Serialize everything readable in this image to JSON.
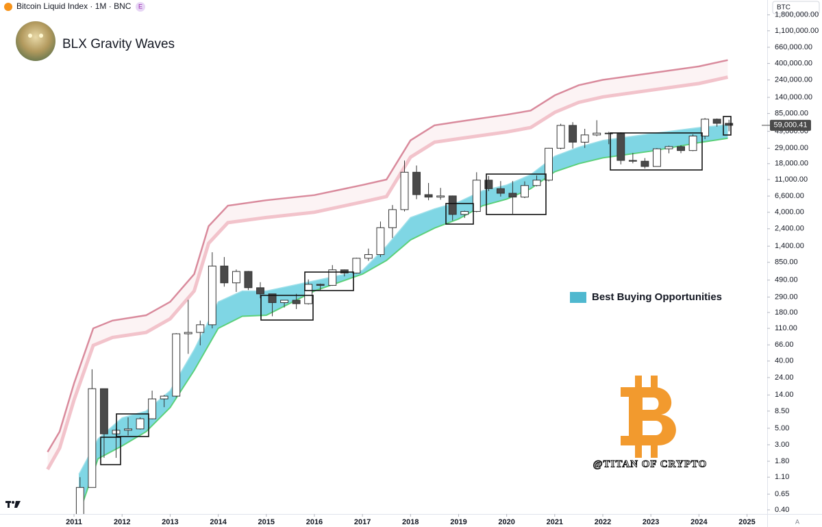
{
  "chart_data": {
    "type": "candlestick",
    "title": "Bitcoin Liquid Index · 1M · BNC",
    "badge": "E",
    "subtitle": "BLX Gravity Waves",
    "currency": "BTC",
    "scale_button": "A",
    "annotation": "@TITAN OF CRYPTO",
    "last_price": 59000.41,
    "last_price_label": "59,000.41",
    "log_y": true,
    "grid": false,
    "legend_position": "right",
    "up_color": "#ffffff",
    "down_color": "#4a4a4a",
    "xlim": [
      2009.46,
      2025.42
    ],
    "xticks": [
      2011,
      2012,
      2013,
      2014,
      2015,
      2016,
      2017,
      2018,
      2019,
      2020,
      2021,
      2022,
      2023,
      2024,
      2025
    ],
    "ylim": [
      0.352,
      2850000
    ],
    "yticks": [
      {
        "value": 1800000,
        "label": "1,800,000.00"
      },
      {
        "value": 1100000,
        "label": "1,100,000.00"
      },
      {
        "value": 660000,
        "label": "660,000.00"
      },
      {
        "value": 400000,
        "label": "400,000.00"
      },
      {
        "value": 240000,
        "label": "240,000.00"
      },
      {
        "value": 140000,
        "label": "140,000.00"
      },
      {
        "value": 85000,
        "label": "85,000.00"
      },
      {
        "value": 49000,
        "label": "49,000.00"
      },
      {
        "value": 29000,
        "label": "29,000.00"
      },
      {
        "value": 18000,
        "label": "18,000.00"
      },
      {
        "value": 11000,
        "label": "11,000.00"
      },
      {
        "value": 6600,
        "label": "6,600.00"
      },
      {
        "value": 4000,
        "label": "4,000.00"
      },
      {
        "value": 2400,
        "label": "2,400.00"
      },
      {
        "value": 1400,
        "label": "1,400.00"
      },
      {
        "value": 850,
        "label": "850.00"
      },
      {
        "value": 490,
        "label": "490.00"
      },
      {
        "value": 290,
        "label": "290.00"
      },
      {
        "value": 180,
        "label": "180.00"
      },
      {
        "value": 110,
        "label": "110.00"
      },
      {
        "value": 66,
        "label": "66.00"
      },
      {
        "value": 40,
        "label": "40.00"
      },
      {
        "value": 24,
        "label": "24.00"
      },
      {
        "value": 14,
        "label": "14.00"
      },
      {
        "value": 8.5,
        "label": "8.50"
      },
      {
        "value": 5,
        "label": "5.00"
      },
      {
        "value": 3,
        "label": "3.00"
      },
      {
        "value": 1.8,
        "label": "1.80"
      },
      {
        "value": 1.1,
        "label": "1.10"
      },
      {
        "value": 0.65,
        "label": "0.65"
      },
      {
        "value": 0.4,
        "label": "0.40"
      }
    ],
    "x": [
      2011.125,
      2011.375,
      2011.625,
      2011.875,
      2012.125,
      2012.375,
      2012.625,
      2012.875,
      2013.125,
      2013.375,
      2013.625,
      2013.875,
      2014.125,
      2014.375,
      2014.625,
      2014.875,
      2015.125,
      2015.375,
      2015.625,
      2015.875,
      2016.125,
      2016.375,
      2016.625,
      2016.875,
      2017.125,
      2017.375,
      2017.625,
      2017.875,
      2018.125,
      2018.375,
      2018.625,
      2018.875,
      2019.125,
      2019.375,
      2019.625,
      2019.875,
      2020.125,
      2020.375,
      2020.625,
      2020.875,
      2021.125,
      2021.375,
      2021.625,
      2021.875,
      2022.125,
      2022.375,
      2022.625,
      2022.875,
      2023.125,
      2023.375,
      2023.625,
      2023.875,
      2024.125,
      2024.375,
      2024.625
    ],
    "open": [
      0.3,
      0.8,
      17,
      4.2,
      4.7,
      4.9,
      6.7,
      12.4,
      13.5,
      93,
      97,
      123,
      757,
      450,
      640,
      387,
      320,
      244,
      263,
      236,
      430,
      416,
      673,
      610,
      963,
      1079,
      2480,
      4340,
      13800,
      6900,
      6390,
      6630,
      3740,
      4100,
      10800,
      8300,
      7200,
      6400,
      9140,
      10800,
      29000,
      58800,
      35000,
      43800,
      46300,
      45500,
      19900,
      19400,
      16500,
      28500,
      30500,
      27000,
      42300,
      71300,
      62700
    ],
    "high": [
      1.1,
      31,
      17,
      5,
      7,
      7,
      16,
      14,
      95,
      266,
      140,
      1160,
      1000,
      680,
      650,
      460,
      320,
      260,
      320,
      500,
      440,
      780,
      680,
      980,
      1300,
      3000,
      5000,
      19800,
      17000,
      9900,
      8500,
      6700,
      4200,
      13800,
      12300,
      10500,
      10500,
      10400,
      12500,
      29300,
      61800,
      65000,
      52900,
      69000,
      48200,
      47400,
      25000,
      21400,
      29200,
      31400,
      31800,
      44700,
      73800,
      72800,
      70000
    ],
    "low": [
      0.3,
      0.8,
      2,
      2,
      4,
      4.8,
      6.6,
      9.6,
      13,
      50,
      65,
      110,
      400,
      340,
      360,
      280,
      160,
      210,
      200,
      230,
      360,
      410,
      550,
      600,
      890,
      1000,
      1800,
      4100,
      6000,
      5800,
      5900,
      3100,
      3350,
      4000,
      7700,
      6500,
      3800,
      6200,
      8900,
      10400,
      28000,
      28800,
      29300,
      42000,
      32900,
      17600,
      18200,
      15500,
      16500,
      24800,
      24900,
      26500,
      38500,
      56500,
      49000
    ],
    "close": [
      0.8,
      17,
      4.2,
      4.7,
      4.9,
      6.7,
      12.4,
      13.5,
      93,
      97,
      123,
      757,
      450,
      640,
      387,
      320,
      244,
      263,
      236,
      430,
      416,
      673,
      610,
      963,
      1079,
      2480,
      4340,
      13800,
      6900,
      6390,
      6630,
      3740,
      4100,
      10800,
      8300,
      7200,
      6400,
      9140,
      10800,
      29000,
      58800,
      35000,
      43800,
      46300,
      45500,
      19900,
      19400,
      16500,
      28500,
      30500,
      27000,
      42300,
      71300,
      62700,
      59000
    ],
    "bands": [
      {
        "x": [
          2010.45,
          2010.7,
          2011.0,
          2011.4,
          2011.8,
          2012.5,
          2013.0,
          2013.5,
          2013.8,
          2014.2,
          2015,
          2016,
          2017,
          2017.5,
          2018,
          2018.5,
          2019,
          2020,
          2020.5,
          2021,
          2021.5,
          2022,
          2023,
          2024,
          2024.6
        ],
        "upper": [
          2.4,
          4.5,
          20,
          110,
          140,
          165,
          250,
          590,
          2600,
          4900,
          5800,
          6800,
          9300,
          11000,
          37000,
          59000,
          66000,
          82000,
          93000,
          149000,
          204000,
          241000,
          296000,
          365000,
          444000
        ],
        "lower": [
          1.4,
          2.7,
          12,
          65,
          83,
          97,
          148,
          350,
          1530,
          2900,
          3400,
          4000,
          5500,
          6500,
          22000,
          35000,
          39000,
          48000,
          55000,
          88000,
          120000,
          142000,
          175000,
          215000,
          262000
        ],
        "fill": "#fcf3f4",
        "upper_color": "#d98a9c",
        "lower_color": "#f2c3cb"
      },
      {
        "name": "Best Buying Opportunities",
        "x": [
          2011.1,
          2011.5,
          2012,
          2012.5,
          2013,
          2013.5,
          2014,
          2014.5,
          2015,
          2016,
          2017,
          2017.5,
          2018,
          2018.5,
          2019,
          2019.5,
          2020,
          2020.5,
          2021,
          2021.5,
          2022,
          2023,
          2024,
          2024.6
        ],
        "upper": [
          1.2,
          3.6,
          6.9,
          8.5,
          16,
          57,
          250,
          350,
          350,
          480,
          660,
          1400,
          3400,
          4450,
          5500,
          7800,
          9300,
          12800,
          22700,
          30000,
          37000,
          45500,
          55000,
          60000
        ],
        "lower": [
          0.35,
          1.95,
          2.9,
          4.5,
          9.5,
          30,
          110,
          160,
          165,
          350,
          590,
          900,
          1700,
          2450,
          3250,
          4900,
          6000,
          8300,
          14000,
          18000,
          21500,
          26500,
          34500,
          39500
        ],
        "fill": "#7fd6e4",
        "upper_color": "#9fe0ea",
        "lower_color": "#5cd07a",
        "legend_color": "#4fb8cf"
      }
    ]
  }
}
